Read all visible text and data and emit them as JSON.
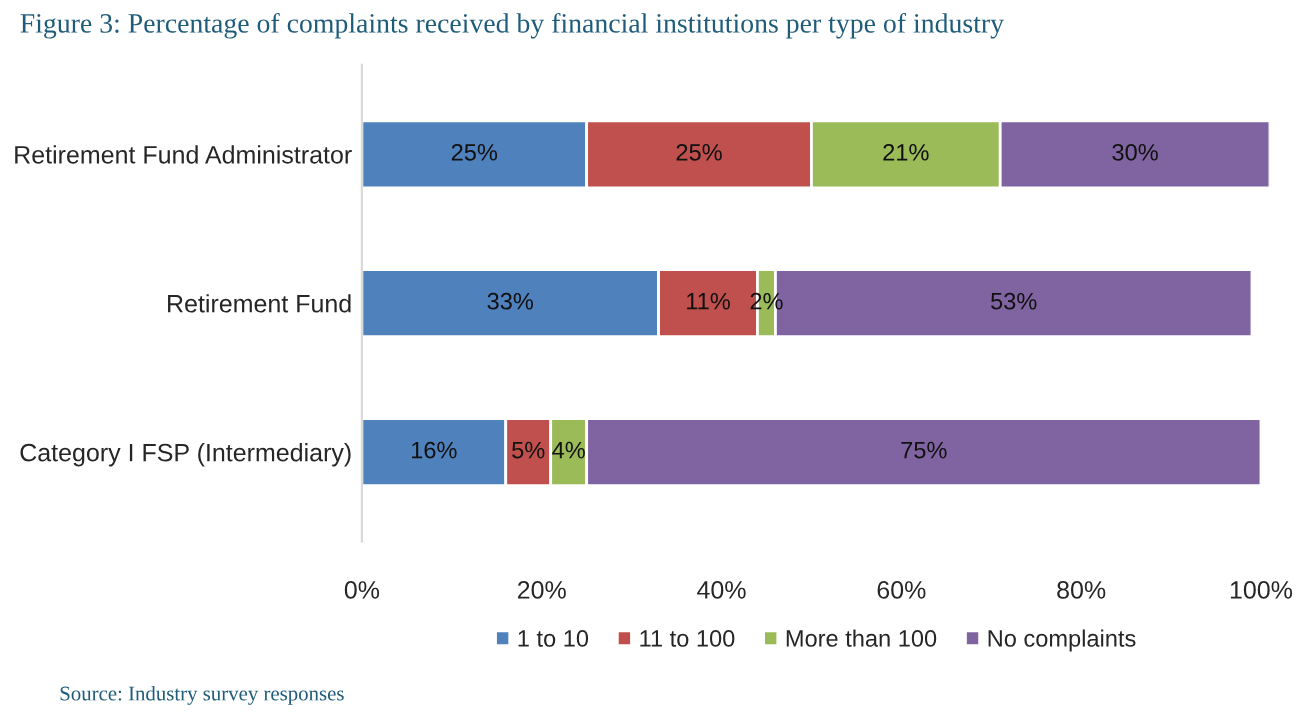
{
  "chart_data": {
    "type": "bar",
    "orientation": "horizontal",
    "stacked": true,
    "title": "Figure 3: Percentage of complaints received by financial institutions per type of industry",
    "categories": [
      "Retirement Fund Administrator",
      "Retirement Fund",
      "Category I FSP (Intermediary)"
    ],
    "series": [
      {
        "name": "1 to 10",
        "color": "#4f81bd",
        "values": [
          25,
          33,
          16
        ],
        "value_labels": [
          "25%",
          "33%",
          "16%"
        ]
      },
      {
        "name": "11 to 100",
        "color": "#c0504d",
        "values": [
          25,
          11,
          5
        ],
        "value_labels": [
          "25%",
          "11%",
          "5%"
        ]
      },
      {
        "name": "More than 100",
        "color": "#9bbb59",
        "values": [
          21,
          2,
          4
        ],
        "value_labels": [
          "21%",
          "2%",
          "4%"
        ]
      },
      {
        "name": "No complaints",
        "color": "#8064a2",
        "values": [
          30,
          53,
          75
        ],
        "value_labels": [
          "30%",
          "53%",
          "75%"
        ]
      }
    ],
    "xlim": [
      0,
      101
    ],
    "xticks": [
      {
        "value": 0,
        "label": "0%"
      },
      {
        "value": 20,
        "label": "20%"
      },
      {
        "value": 40,
        "label": "40%"
      },
      {
        "value": 60,
        "label": "60%"
      },
      {
        "value": 80,
        "label": "80%"
      },
      {
        "value": 100,
        "label": "100%"
      }
    ],
    "grid": false,
    "legend": "bottom",
    "annotations": [
      "Source: Industry survey responses"
    ]
  }
}
